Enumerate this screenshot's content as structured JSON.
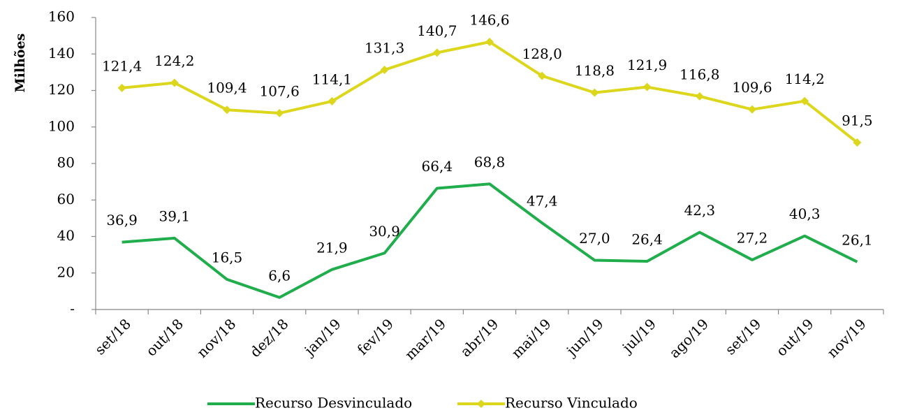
{
  "chart_data": {
    "type": "line",
    "y_label": "Milhões",
    "categories": [
      "set/18",
      "out/18",
      "nov/18",
      "dez/18",
      "jan/19",
      "fev/19",
      "mar/19",
      "abr/19",
      "mai/19",
      "jun/19",
      "jul/19",
      "ago/19",
      "set/19",
      "out/19",
      "nov/19"
    ],
    "series": [
      {
        "name": "Recurso Desvinculado",
        "color": "#1fae4b",
        "marker": "none",
        "values": [
          36.9,
          39.1,
          16.5,
          6.6,
          21.9,
          30.9,
          66.4,
          68.8,
          47.4,
          27.0,
          26.4,
          42.3,
          27.2,
          40.3,
          26.1
        ],
        "value_labels": [
          "36,9",
          "39,1",
          "16,5",
          "6,6",
          "21,9",
          "30,9",
          "66,4",
          "68,8",
          "47,4",
          "27,0",
          "26,4",
          "42,3",
          "27,2",
          "40,3",
          "26,1"
        ]
      },
      {
        "name": "Recurso Vinculado",
        "color": "#dcd71c",
        "marker": "diamond",
        "values": [
          121.4,
          124.2,
          109.4,
          107.6,
          114.1,
          131.3,
          140.7,
          146.6,
          128.0,
          118.8,
          121.9,
          116.8,
          109.6,
          114.2,
          91.5
        ],
        "value_labels": [
          "121,4",
          "124,2",
          "109,4",
          "107,6",
          "114,1",
          "131,3",
          "140,7",
          "146,6",
          "128,0",
          "118,8",
          "121,9",
          "116,8",
          "109,6",
          "114,2",
          "91,5"
        ]
      }
    ],
    "ylim": [
      0,
      160
    ],
    "yticks": [
      {
        "value": 0,
        "label": "-"
      },
      20,
      40,
      60,
      80,
      100,
      120,
      140,
      160
    ],
    "grid": false,
    "legend": "bottom"
  }
}
